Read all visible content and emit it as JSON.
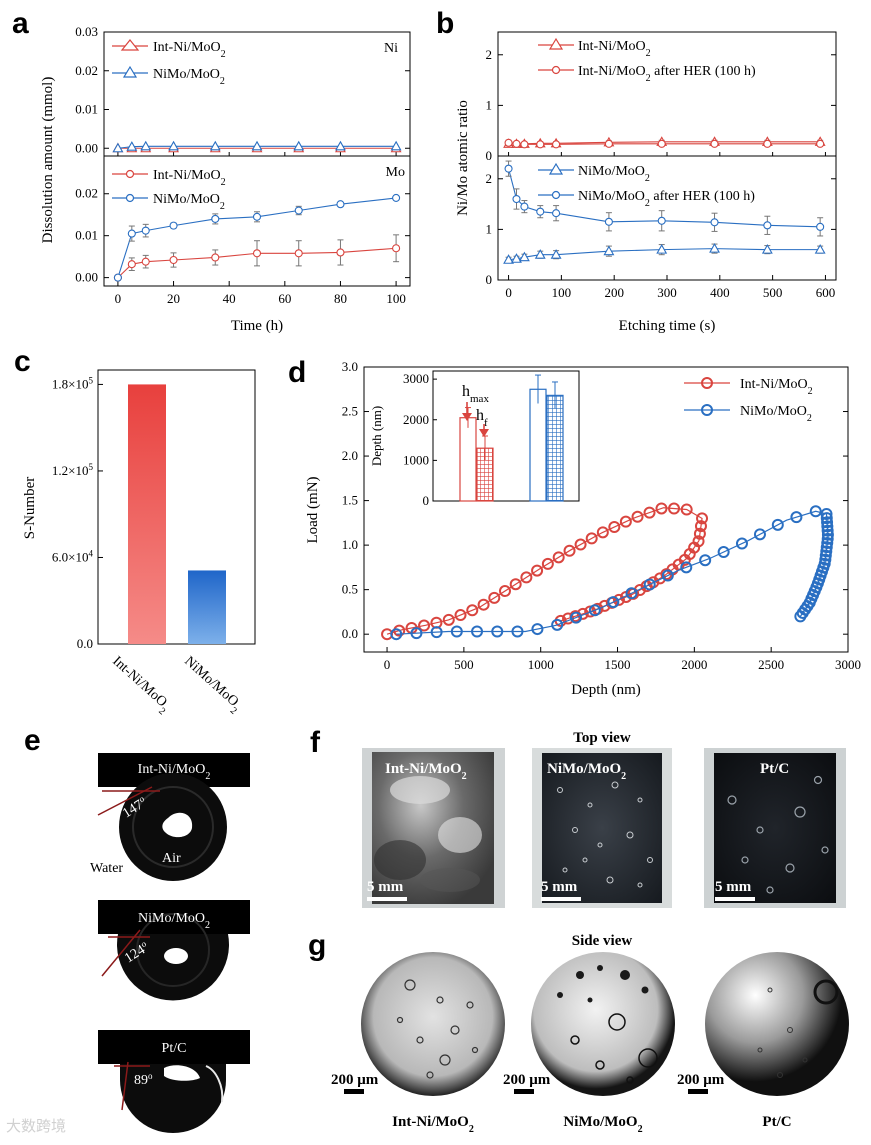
{
  "panels": {
    "a": "a",
    "b": "b",
    "c": "c",
    "d": "d",
    "e": "e",
    "f": "f",
    "g": "g"
  },
  "colors": {
    "red": "#d9453f",
    "blue": "#2a6fc2",
    "grid": "#000000"
  },
  "chart_data": [
    {
      "id": "a-top",
      "type": "line",
      "panel": "a",
      "corner_label": "Ni",
      "ylabel": "Dissolution amount (mmol)",
      "xlim": [
        -5,
        105
      ],
      "ylim": [
        -0.002,
        0.03
      ],
      "yticks": [
        0.0,
        0.01,
        0.02,
        0.03
      ],
      "ytick_labels": [
        "0.00",
        "0.01",
        "0.02",
        "0.03"
      ],
      "series": [
        {
          "name": "Int-Ni/MoO2",
          "legend_main": "Int-Ni/MoO",
          "legend_sub": "2",
          "marker": "triangle",
          "color": "#d9453f",
          "x": [
            0,
            5,
            10,
            20,
            35,
            50,
            65,
            80,
            100
          ],
          "y": [
            0,
            0,
            0,
            0,
            0,
            0,
            0,
            0,
            0
          ]
        },
        {
          "name": "NiMo/MoO2",
          "legend_main": "NiMo/MoO",
          "legend_sub": "2",
          "marker": "triangle",
          "color": "#2a6fc2",
          "x": [
            0,
            5,
            10,
            20,
            35,
            50,
            65,
            80,
            100
          ],
          "y": [
            0,
            0.0004,
            0.0005,
            0.0005,
            0.0005,
            0.0005,
            0.0005,
            0.0005,
            0.0005
          ]
        }
      ]
    },
    {
      "id": "a-bottom",
      "type": "line",
      "panel": "a",
      "corner_label": "Mo",
      "xlabel": "Time (h)",
      "xlim": [
        -5,
        105
      ],
      "ylim": [
        -0.002,
        0.029
      ],
      "xticks": [
        0,
        20,
        40,
        60,
        80,
        100
      ],
      "xtick_labels": [
        "0",
        "20",
        "40",
        "60",
        "80",
        "100"
      ],
      "yticks": [
        0.0,
        0.01,
        0.02
      ],
      "ytick_labels": [
        "0.00",
        "0.01",
        "0.02"
      ],
      "series": [
        {
          "name": "Int-Ni/MoO2",
          "legend_main": "Int-Ni/MoO",
          "legend_sub": "2",
          "marker": "circle",
          "color": "#d9453f",
          "x": [
            0,
            5,
            10,
            20,
            35,
            50,
            65,
            80,
            100
          ],
          "y": [
            0,
            0.0032,
            0.0038,
            0.0042,
            0.0048,
            0.0058,
            0.0058,
            0.006,
            0.007
          ],
          "err": [
            0,
            0.0015,
            0.0015,
            0.0017,
            0.0018,
            0.003,
            0.003,
            0.003,
            0.0032
          ]
        },
        {
          "name": "NiMo/MoO2",
          "legend_main": "NiMo/MoO",
          "legend_sub": "2",
          "marker": "circle",
          "color": "#2a6fc2",
          "x": [
            0,
            5,
            10,
            20,
            35,
            50,
            65,
            80,
            100
          ],
          "y": [
            0,
            0.0105,
            0.0112,
            0.0124,
            0.014,
            0.0145,
            0.016,
            0.0175,
            0.019
          ],
          "err": [
            0,
            0.0018,
            0.0015,
            0.0006,
            0.0012,
            0.0012,
            0.001,
            0.0004,
            0.0004
          ]
        }
      ]
    },
    {
      "id": "b-top",
      "type": "line",
      "panel": "b",
      "ylabel": "Ni/Mo atomic ratio",
      "xlim": [
        -20,
        620
      ],
      "ylim": [
        0,
        2.45
      ],
      "yticks": [
        0,
        1,
        2
      ],
      "ytick_labels": [
        "0",
        "1",
        "2"
      ],
      "series": [
        {
          "name": "Int-Ni/MoO2",
          "legend_main": "Int-Ni/MoO",
          "legend_sub": "2",
          "legend_suffix": "",
          "marker": "triangle",
          "color": "#d9453f",
          "x": [
            0,
            15,
            30,
            60,
            90,
            190,
            290,
            390,
            490,
            590
          ],
          "y": [
            0.24,
            0.24,
            0.24,
            0.25,
            0.25,
            0.27,
            0.28,
            0.28,
            0.28,
            0.28
          ],
          "err": [
            0.04,
            0.03,
            0.03,
            0.03,
            0.03,
            0.03,
            0.03,
            0.03,
            0.03,
            0.03
          ]
        },
        {
          "name": "Int-Ni/MoO2 after HER (100 h)",
          "legend_main": "Int-Ni/MoO",
          "legend_sub": "2",
          "legend_suffix": " after HER (100 h)",
          "marker": "circle",
          "color": "#d9453f",
          "x": [
            0,
            15,
            30,
            60,
            90,
            190,
            290,
            390,
            490,
            590
          ],
          "y": [
            0.26,
            0.24,
            0.23,
            0.23,
            0.23,
            0.24,
            0.24,
            0.24,
            0.24,
            0.24
          ],
          "err": [
            0.05,
            0.03,
            0.03,
            0.03,
            0.03,
            0.03,
            0.03,
            0.03,
            0.03,
            0.03
          ]
        }
      ]
    },
    {
      "id": "b-bottom",
      "type": "line",
      "panel": "b",
      "xlabel": "Etching time (s)",
      "xlim": [
        -20,
        620
      ],
      "ylim": [
        0,
        2.45
      ],
      "xticks": [
        0,
        100,
        200,
        300,
        400,
        500,
        600
      ],
      "xtick_labels": [
        "0",
        "100",
        "200",
        "300",
        "400",
        "500",
        "600"
      ],
      "yticks": [
        0,
        1,
        2
      ],
      "ytick_labels": [
        "0",
        "1",
        "2"
      ],
      "series": [
        {
          "name": "NiMo/MoO2",
          "legend_main": "NiMo/MoO",
          "legend_sub": "2",
          "legend_suffix": "",
          "marker": "triangle",
          "color": "#2a6fc2",
          "x": [
            0,
            15,
            30,
            60,
            90,
            190,
            290,
            390,
            490,
            590
          ],
          "y": [
            0.4,
            0.42,
            0.45,
            0.5,
            0.5,
            0.57,
            0.6,
            0.62,
            0.6,
            0.6
          ],
          "err": [
            0.05,
            0.05,
            0.06,
            0.07,
            0.08,
            0.1,
            0.1,
            0.09,
            0.08,
            0.07
          ]
        },
        {
          "name": "NiMo/MoO2 after HER (100 h)",
          "legend_main": "NiMo/MoO",
          "legend_sub": "2",
          "legend_suffix": " after HER (100 h)",
          "marker": "circle",
          "color": "#2a6fc2",
          "x": [
            0,
            15,
            30,
            60,
            90,
            190,
            290,
            390,
            490,
            590
          ],
          "y": [
            2.2,
            1.6,
            1.45,
            1.35,
            1.32,
            1.15,
            1.17,
            1.14,
            1.08,
            1.05
          ],
          "err": [
            0.15,
            0.2,
            0.12,
            0.12,
            0.15,
            0.18,
            0.2,
            0.18,
            0.18,
            0.18
          ]
        }
      ]
    },
    {
      "id": "c",
      "type": "bar",
      "panel": "c",
      "ylabel": "S-Number",
      "ylim": [
        0,
        190000
      ],
      "ytick_labels": [
        {
          "value": 0,
          "main": "0.0",
          "sup": ""
        },
        {
          "value": 60000,
          "main": "6.0×10",
          "sup": "4"
        },
        {
          "value": 120000,
          "main": "1.2×10",
          "sup": "5"
        },
        {
          "value": 180000,
          "main": "1.8×10",
          "sup": "5"
        }
      ],
      "categories": [
        {
          "main": "Int-Ni/MoO",
          "sub": "2",
          "value": 180000,
          "color_top": "#e8403d",
          "color_bottom": "#f58b88"
        },
        {
          "main": "NiMo/MoO",
          "sub": "2",
          "value": 51000,
          "color_top": "#1f66c9",
          "color_bottom": "#7db0ea"
        }
      ]
    },
    {
      "id": "d",
      "type": "line",
      "panel": "d",
      "xlabel": "Depth (nm)",
      "ylabel": "Load (mN)",
      "xlim": [
        -150,
        3000
      ],
      "ylim": [
        -0.2,
        3.0
      ],
      "xticks": [
        0,
        500,
        1000,
        1500,
        2000,
        2500,
        3000
      ],
      "xtick_labels": [
        "0",
        "500",
        "1000",
        "1500",
        "2000",
        "2500",
        "3000"
      ],
      "yticks": [
        0,
        0.5,
        1,
        1.5,
        2,
        2.5,
        3
      ],
      "ytick_labels": [
        "0.0",
        "0.5",
        "1.0",
        "1.5",
        "2.0",
        "2.5",
        "3.0"
      ],
      "series": [
        {
          "name": "Int-Ni/MoO2",
          "legend_main": "Int-Ni/MoO",
          "legend_sub": "2",
          "color": "#d9453f",
          "loading": [
            [
              0,
              0
            ],
            [
              100,
              0.05
            ],
            [
              250,
              0.1
            ],
            [
              400,
              0.16
            ],
            [
              600,
              0.3
            ],
            [
              800,
              0.52
            ],
            [
              1000,
              0.74
            ],
            [
              1200,
              0.95
            ],
            [
              1400,
              1.14
            ],
            [
              1600,
              1.3
            ],
            [
              1800,
              1.42
            ],
            [
              1950,
              1.4
            ]
          ],
          "unloading": [
            [
              2050,
              1.3
            ],
            [
              2030,
              1.05
            ],
            [
              1950,
              0.85
            ],
            [
              1800,
              0.65
            ],
            [
              1600,
              0.45
            ],
            [
              1350,
              0.27
            ],
            [
              1130,
              0.15
            ]
          ]
        },
        {
          "name": "NiMo/MoO2",
          "legend_main": "NiMo/MoO",
          "legend_sub": "2",
          "color": "#2a6fc2",
          "loading": [
            [
              60,
              0
            ],
            [
              400,
              0.03
            ],
            [
              900,
              0.03
            ],
            [
              1100,
              0.1
            ],
            [
              1400,
              0.3
            ],
            [
              1700,
              0.55
            ],
            [
              1900,
              0.72
            ],
            [
              2100,
              0.85
            ],
            [
              2350,
              1.05
            ],
            [
              2600,
              1.28
            ],
            [
              2790,
              1.38
            ]
          ],
          "unloading": [
            [
              2860,
              1.35
            ],
            [
              2870,
              1.1
            ],
            [
              2850,
              0.8
            ],
            [
              2800,
              0.55
            ],
            [
              2750,
              0.35
            ],
            [
              2690,
              0.2
            ]
          ]
        }
      ],
      "inset": {
        "ylabel": "Depth (nm)",
        "ylim": [
          0,
          3200
        ],
        "yticks": [
          0,
          1000,
          2000,
          3000
        ],
        "ytick_labels": [
          "0",
          "1000",
          "2000",
          "3000"
        ],
        "hmax_label": {
          "main": "h",
          "sub": "max"
        },
        "hf_label": {
          "main": "h",
          "sub": "f"
        },
        "bars": [
          {
            "sample": "Int-Ni/MoO2",
            "kind": "h_max",
            "value": 2050,
            "err": 250,
            "color": "#d9453f",
            "fill": "open"
          },
          {
            "sample": "Int-Ni/MoO2",
            "kind": "h_f",
            "value": 1300,
            "err": 300,
            "color": "#d9453f",
            "fill": "hatched"
          },
          {
            "sample": "NiMo/MoO2",
            "kind": "h_max",
            "value": 2750,
            "err": 350,
            "color": "#2a6fc2",
            "fill": "open"
          },
          {
            "sample": "NiMo/MoO2",
            "kind": "h_f",
            "value": 2600,
            "err": 330,
            "color": "#2a6fc2",
            "fill": "hatched"
          }
        ]
      }
    }
  ],
  "panel_e": {
    "drops": [
      {
        "label_main": "Int-Ni/MoO",
        "label_sub": "2",
        "angle": "147",
        "deg": "o"
      },
      {
        "label_main": "NiMo/MoO",
        "label_sub": "2",
        "angle": "124",
        "deg": "o"
      },
      {
        "label_main": "Pt/C",
        "label_sub": "",
        "angle": "89",
        "deg": "o"
      }
    ],
    "water_label": "Water",
    "air_label": "Air"
  },
  "panel_f": {
    "title": "Top view",
    "scale": "5 mm",
    "photos": [
      {
        "main": "Int-Ni/MoO",
        "sub": "2"
      },
      {
        "main": "NiMo/MoO",
        "sub": "2"
      },
      {
        "main": "Pt/C",
        "sub": ""
      }
    ]
  },
  "panel_g": {
    "title": "Side view",
    "scale": "200 μm",
    "photos": [
      {
        "main": "Int-Ni/MoO",
        "sub": "2"
      },
      {
        "main": "NiMo/MoO",
        "sub": "2"
      },
      {
        "main": "Pt/C",
        "sub": ""
      }
    ]
  },
  "watermark": "大数跨境"
}
